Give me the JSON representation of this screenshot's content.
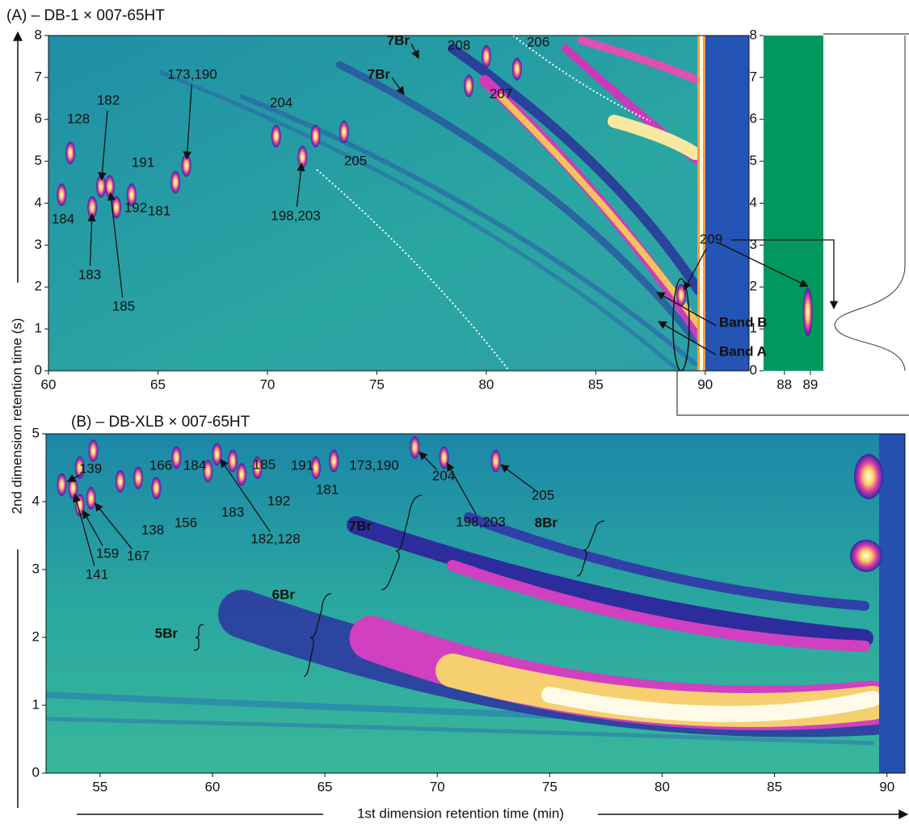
{
  "chart_data": [
    {
      "type": "contour",
      "title": "(A) – DB-1 × 007-65HT",
      "y_label": "2nd dimension retention time (s)",
      "xlim": [
        60,
        92
      ],
      "ylim": [
        0,
        8
      ],
      "xticks": [
        60,
        65,
        70,
        75,
        80,
        85,
        90
      ],
      "yticks": [
        0,
        1,
        2,
        3,
        4,
        5,
        6,
        7,
        8
      ],
      "peaks": [
        {
          "label": "184",
          "x": 60.6,
          "y": 4.2
        },
        {
          "label": "128",
          "x": 61.0,
          "y": 5.2
        },
        {
          "label": "183",
          "x": 62.0,
          "y": 3.9
        },
        {
          "label": "182",
          "x": 62.4,
          "y": 4.4
        },
        {
          "label": "185",
          "x": 62.8,
          "y": 4.4
        },
        {
          "label": "192",
          "x": 63.1,
          "y": 3.9
        },
        {
          "label": "191",
          "x": 63.8,
          "y": 4.2
        },
        {
          "label": "181",
          "x": 65.8,
          "y": 4.5
        },
        {
          "label": "173,190",
          "x": 66.3,
          "y": 4.9
        },
        {
          "label": "204",
          "x": 70.4,
          "y": 5.6
        },
        {
          "label": "198,203",
          "x": 71.6,
          "y": 5.1
        },
        {
          "label": null,
          "x": 72.2,
          "y": 5.6
        },
        {
          "label": "205",
          "x": 73.5,
          "y": 5.7
        },
        {
          "label": "208",
          "x": 79.2,
          "y": 6.8
        },
        {
          "label": "207",
          "x": 80.0,
          "y": 7.5
        },
        {
          "label": "206",
          "x": 81.4,
          "y": 7.2
        },
        {
          "label": "209",
          "x": 88.9,
          "y": 1.8
        }
      ],
      "annotations": [
        "7Br",
        "7Br",
        "Band B",
        "Band A"
      ]
    },
    {
      "type": "contour",
      "xlim": [
        87.2,
        89.5
      ],
      "ylim": [
        0,
        8
      ],
      "xticks": [
        88,
        89
      ],
      "yticks": [
        0,
        1,
        2,
        3,
        4,
        5,
        6,
        7,
        8
      ],
      "color": "#00985f",
      "peaks": [
        {
          "label": null,
          "x": 88.9,
          "y": 1.4
        }
      ]
    },
    {
      "type": "contour",
      "title": "(B) – DB-XLB × 007-65HT",
      "x_label": "1st dimension retention time (min)",
      "xlim": [
        52.6,
        90.8
      ],
      "ylim": [
        0,
        5
      ],
      "xticks": [
        55,
        60,
        65,
        70,
        75,
        80,
        85,
        90
      ],
      "yticks": [
        0,
        1,
        2,
        3,
        4,
        5
      ],
      "peaks": [
        {
          "label": "139",
          "x": 53.3,
          "y": 4.25
        },
        {
          "label": "141",
          "x": 53.8,
          "y": 4.2
        },
        {
          "label": "159",
          "x": 54.1,
          "y": 3.95
        },
        {
          "label": "167",
          "x": 54.6,
          "y": 4.05
        },
        {
          "label": null,
          "x": 54.1,
          "y": 4.5
        },
        {
          "label": null,
          "x": 54.7,
          "y": 4.75
        },
        {
          "label": "138",
          "x": 55.9,
          "y": 4.3
        },
        {
          "label": "166",
          "x": 56.7,
          "y": 4.35
        },
        {
          "label": "156",
          "x": 57.5,
          "y": 4.2
        },
        {
          "label": "184",
          "x": 58.4,
          "y": 4.65
        },
        {
          "label": "183",
          "x": 59.8,
          "y": 4.45
        },
        {
          "label": "182,128",
          "x": 60.2,
          "y": 4.7
        },
        {
          "label": "185",
          "x": 60.9,
          "y": 4.6
        },
        {
          "label": "192",
          "x": 61.3,
          "y": 4.4
        },
        {
          "label": "191",
          "x": 62.0,
          "y": 4.5
        },
        {
          "label": "181",
          "x": 64.6,
          "y": 4.5
        },
        {
          "label": "173,190",
          "x": 65.4,
          "y": 4.6
        },
        {
          "label": "204",
          "x": 69.0,
          "y": 4.8
        },
        {
          "label": "198,203",
          "x": 70.3,
          "y": 4.65
        },
        {
          "label": "205",
          "x": 72.6,
          "y": 4.6
        }
      ],
      "annotations": [
        "5Br",
        "6Br",
        "7Br",
        "8Br"
      ]
    }
  ]
}
